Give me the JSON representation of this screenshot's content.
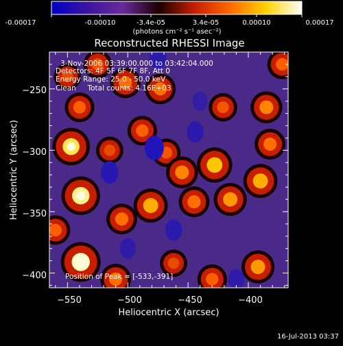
{
  "colorbar": {
    "tick_labels": [
      "-0.00017",
      "-0.00010",
      "-3.4e-05",
      "3.4e-05",
      "0.00010",
      "0.00017"
    ],
    "unit_label": "(photons cm⁻² s⁻¹ asec⁻²)",
    "colormap": [
      "#0000c8",
      "#3c14a0",
      "#6a2a9a",
      "#1a0000",
      "#c81e00",
      "#ff6a00",
      "#ffd200",
      "#ffffff"
    ]
  },
  "chart_data": {
    "type": "heatmap",
    "title": "Reconstructed RHESSI Image",
    "xlabel": "Heliocentric X (arcsec)",
    "ylabel": "Heliocentric Y (arcsec)",
    "xlim": [
      -565,
      -367
    ],
    "ylim": [
      -412,
      -220
    ],
    "x_ticks": [
      -550,
      -500,
      -450,
      -400
    ],
    "y_ticks": [
      -250,
      -300,
      -350,
      -400
    ],
    "x_tick_labels": [
      "−550",
      "−500",
      "−450",
      "−400"
    ],
    "y_tick_labels": [
      "−250",
      "−300",
      "−350",
      "−400"
    ],
    "value_range": [
      -0.00017,
      0.00017
    ],
    "annotations": {
      "time": "3-Nov-2006 03:39:00.000 to 03:42:04.000",
      "detectors": "Detectors: 4F 5F 6F 7F 8F, Att 0",
      "energy": "Energy Range: 25.0 - 50.0 keV",
      "clean": "Clean     Total counts: 4.16E+03",
      "peak": "Position of Peak = [-533,-391]"
    },
    "sources": [
      {
        "x": -539,
        "y": -391,
        "value": 0.00017
      },
      {
        "x": -539,
        "y": -337,
        "value": 0.00016
      },
      {
        "x": -547,
        "y": -297,
        "value": 0.00015
      },
      {
        "x": -540,
        "y": -265,
        "value": 8e-05
      },
      {
        "x": -550,
        "y": -240,
        "value": 6e-05
      },
      {
        "x": -505,
        "y": -356,
        "value": 9e-05
      },
      {
        "x": -502,
        "y": -245,
        "value": 9e-05
      },
      {
        "x": -488,
        "y": -284,
        "value": 8e-05
      },
      {
        "x": -481,
        "y": -345,
        "value": 0.00012
      },
      {
        "x": -473,
        "y": -250,
        "value": 9e-05
      },
      {
        "x": -468,
        "y": -302,
        "value": 7e-05
      },
      {
        "x": -455,
        "y": -318,
        "value": 0.0001
      },
      {
        "x": -445,
        "y": -342,
        "value": 9e-05
      },
      {
        "x": -428,
        "y": -312,
        "value": 0.00013
      },
      {
        "x": -421,
        "y": -265,
        "value": 7e-05
      },
      {
        "x": -415,
        "y": -340,
        "value": 0.00011
      },
      {
        "x": -390,
        "y": -325,
        "value": 0.00012
      },
      {
        "x": -385,
        "y": -265,
        "value": 0.0001
      },
      {
        "x": -382,
        "y": -295,
        "value": 9e-05
      },
      {
        "x": -392,
        "y": -395,
        "value": 0.00011
      },
      {
        "x": -430,
        "y": -405,
        "value": 8e-05
      },
      {
        "x": -462,
        "y": -392,
        "value": 6e-05
      },
      {
        "x": -510,
        "y": -405,
        "value": 9e-05
      },
      {
        "x": -560,
        "y": -365,
        "value": 8e-05
      },
      {
        "x": -372,
        "y": -230,
        "value": 8e-05
      },
      {
        "x": -515,
        "y": -300,
        "value": 6e-05
      },
      {
        "x": -525,
        "y": -230,
        "value": 7e-05
      },
      {
        "x": -444,
        "y": -285,
        "value": -9e-05
      },
      {
        "x": -515,
        "y": -318,
        "value": -0.0001
      },
      {
        "x": -478,
        "y": -298,
        "value": -0.00012
      },
      {
        "x": -475,
        "y": -225,
        "value": -9e-05
      },
      {
        "x": -462,
        "y": -365,
        "value": -9e-05
      },
      {
        "x": -410,
        "y": -405,
        "value": -8e-05
      },
      {
        "x": -440,
        "y": -260,
        "value": -7e-05
      },
      {
        "x": -500,
        "y": -380,
        "value": -8e-05
      }
    ]
  },
  "footer": {
    "timestamp": "16-Jul-2013 03:37"
  }
}
